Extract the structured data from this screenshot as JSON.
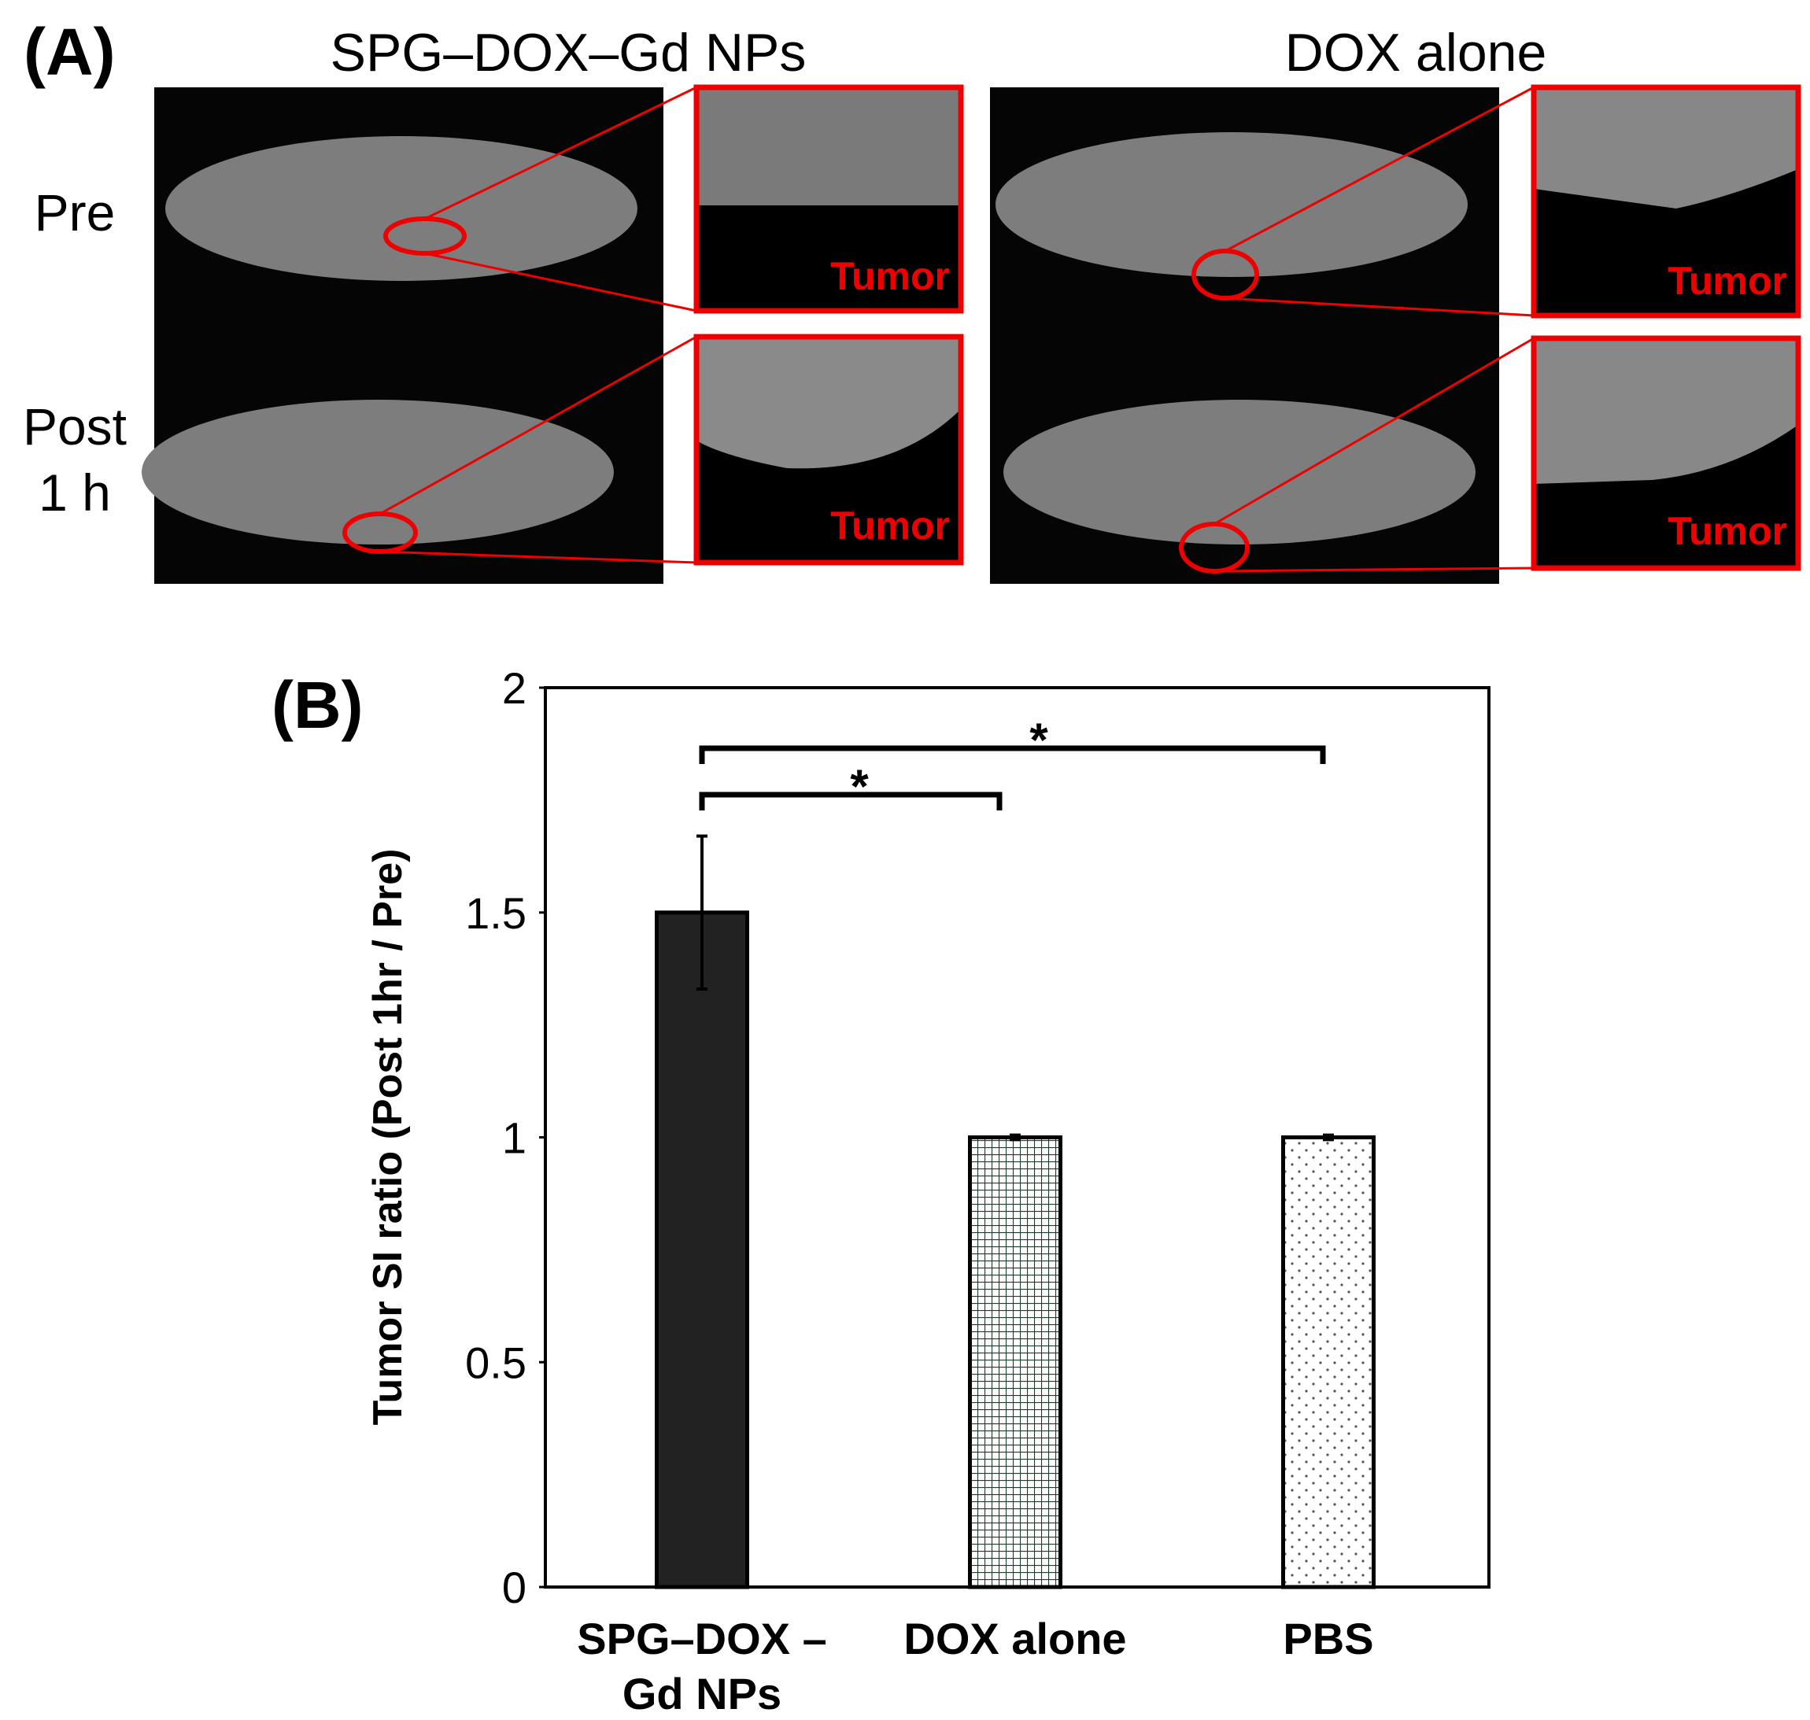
{
  "panel_a": {
    "label": "(A)",
    "columns": [
      "SPG–DOX–Gd NPs",
      "DOX alone"
    ],
    "rows": [
      "Pre",
      "Post 1 h"
    ],
    "inset_label": "Tumor"
  },
  "chart_data": {
    "type": "bar",
    "label": "(B)",
    "ylabel": "Tumor SI ratio (Post 1hr / Pre)",
    "categories": [
      "SPG–DOX –Gd NPs",
      "DOX alone",
      "PBS"
    ],
    "values": [
      1.5,
      1.0,
      1.0
    ],
    "errors": [
      0.17,
      0.005,
      0.005
    ],
    "patterns": [
      "solid",
      "grid",
      "dots"
    ],
    "colors": [
      "#222222",
      "#1f3d2a",
      "#555555"
    ],
    "ylim": [
      0,
      2
    ],
    "yticks": [
      0,
      0.5,
      1,
      1.5,
      2
    ],
    "annotations": [
      "*",
      "*"
    ]
  }
}
